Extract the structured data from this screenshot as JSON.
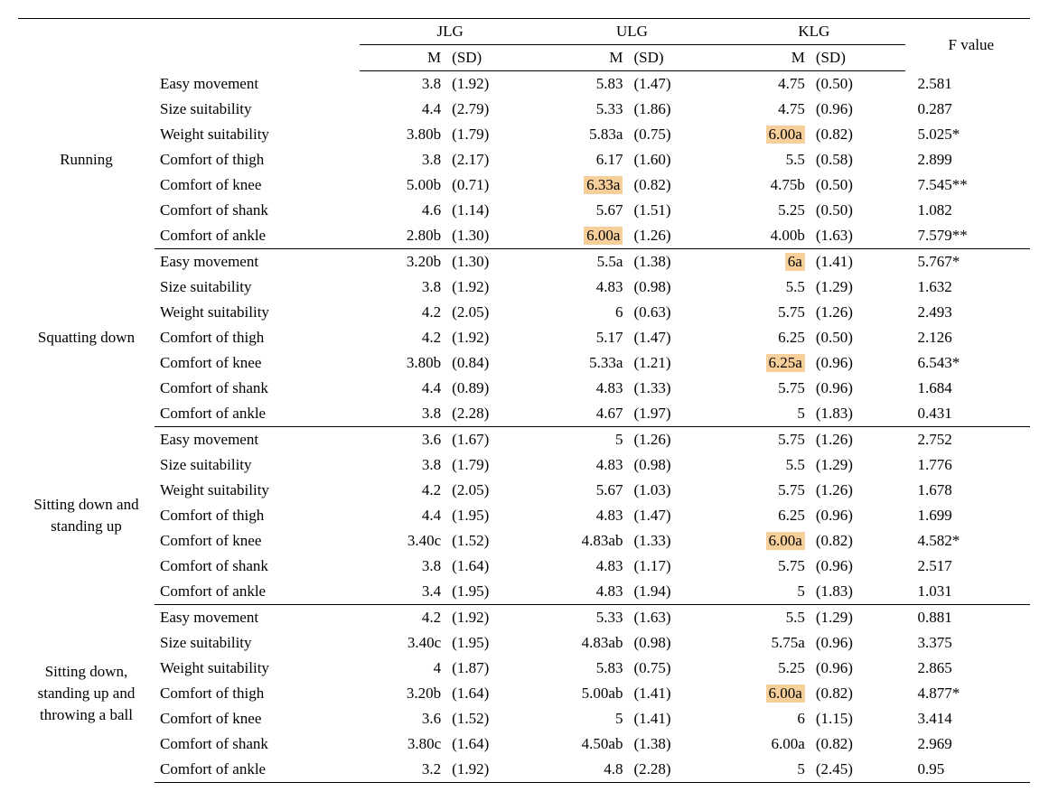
{
  "header": {
    "groups": [
      "JLG",
      "ULG",
      "KLG"
    ],
    "sub": {
      "m": "M",
      "sd": "(SD)"
    },
    "fvalue": "F value"
  },
  "sections": [
    {
      "label": "Running",
      "rows": [
        {
          "attr": "Easy movement",
          "jlg_m": "3.8",
          "jlg_sd": "(1.92)",
          "ulg_m": "5.83",
          "ulg_sd": "(1.47)",
          "klg_m": "4.75",
          "klg_sd": "(0.50)",
          "f": "2.581"
        },
        {
          "attr": "Size suitability",
          "jlg_m": "4.4",
          "jlg_sd": "(2.79)",
          "ulg_m": "5.33",
          "ulg_sd": "(1.86)",
          "klg_m": "4.75",
          "klg_sd": "(0.96)",
          "f": "0.287"
        },
        {
          "attr": "Weight suitability",
          "jlg_m": "3.80b",
          "jlg_sd": "(1.79)",
          "ulg_m": "5.83a",
          "ulg_sd": "(0.75)",
          "klg_m": "6.00a",
          "klg_hl": true,
          "klg_sd": "(0.82)",
          "f": "5.025*"
        },
        {
          "attr": "Comfort of thigh",
          "jlg_m": "3.8",
          "jlg_sd": "(2.17)",
          "ulg_m": "6.17",
          "ulg_sd": "(1.60)",
          "klg_m": "5.5",
          "klg_sd": "(0.58)",
          "f": "2.899"
        },
        {
          "attr": "Comfort of knee",
          "jlg_m": "5.00b",
          "jlg_sd": "(0.71)",
          "ulg_m": "6.33a",
          "ulg_hl": true,
          "ulg_sd": "(0.82)",
          "klg_m": "4.75b",
          "klg_sd": "(0.50)",
          "f": "7.545**"
        },
        {
          "attr": "Comfort of shank",
          "jlg_m": "4.6",
          "jlg_sd": "(1.14)",
          "ulg_m": "5.67",
          "ulg_sd": "(1.51)",
          "klg_m": "5.25",
          "klg_sd": "(0.50)",
          "f": "1.082"
        },
        {
          "attr": "Comfort of ankle",
          "jlg_m": "2.80b",
          "jlg_sd": "(1.30)",
          "ulg_m": "6.00a",
          "ulg_hl": true,
          "ulg_sd": "(1.26)",
          "klg_m": "4.00b",
          "klg_sd": "(1.63)",
          "f": "7.579**"
        }
      ]
    },
    {
      "label": "Squatting down",
      "rows": [
        {
          "attr": "Easy movement",
          "jlg_m": "3.20b",
          "jlg_sd": "(1.30)",
          "ulg_m": "5.5a",
          "ulg_sd": "(1.38)",
          "klg_m": "6a",
          "klg_hl": true,
          "klg_sd": "(1.41)",
          "f": "5.767*"
        },
        {
          "attr": "Size suitability",
          "jlg_m": "3.8",
          "jlg_sd": "(1.92)",
          "ulg_m": "4.83",
          "ulg_sd": "(0.98)",
          "klg_m": "5.5",
          "klg_sd": "(1.29)",
          "f": "1.632"
        },
        {
          "attr": "Weight suitability",
          "jlg_m": "4.2",
          "jlg_sd": "(2.05)",
          "ulg_m": "6",
          "ulg_sd": "(0.63)",
          "klg_m": "5.75",
          "klg_sd": "(1.26)",
          "f": "2.493"
        },
        {
          "attr": "Comfort of thigh",
          "jlg_m": "4.2",
          "jlg_sd": "(1.92)",
          "ulg_m": "5.17",
          "ulg_sd": "(1.47)",
          "klg_m": "6.25",
          "klg_sd": "(0.50)",
          "f": "2.126"
        },
        {
          "attr": "Comfort of knee",
          "jlg_m": "3.80b",
          "jlg_sd": "(0.84)",
          "ulg_m": "5.33a",
          "ulg_sd": "(1.21)",
          "klg_m": "6.25a",
          "klg_hl": true,
          "klg_sd": "(0.96)",
          "f": "6.543*"
        },
        {
          "attr": "Comfort of shank",
          "jlg_m": "4.4",
          "jlg_sd": "(0.89)",
          "ulg_m": "4.83",
          "ulg_sd": "(1.33)",
          "klg_m": "5.75",
          "klg_sd": "(0.96)",
          "f": "1.684"
        },
        {
          "attr": "Comfort of ankle",
          "jlg_m": "3.8",
          "jlg_sd": "(2.28)",
          "ulg_m": "4.67",
          "ulg_sd": "(1.97)",
          "klg_m": "5",
          "klg_sd": "(1.83)",
          "f": "0.431"
        }
      ]
    },
    {
      "label": "Sitting down and standing up",
      "rows": [
        {
          "attr": "Easy movement",
          "jlg_m": "3.6",
          "jlg_sd": "(1.67)",
          "ulg_m": "5",
          "ulg_sd": "(1.26)",
          "klg_m": "5.75",
          "klg_sd": "(1.26)",
          "f": "2.752"
        },
        {
          "attr": "Size suitability",
          "jlg_m": "3.8",
          "jlg_sd": "(1.79)",
          "ulg_m": "4.83",
          "ulg_sd": "(0.98)",
          "klg_m": "5.5",
          "klg_sd": "(1.29)",
          "f": "1.776"
        },
        {
          "attr": "Weight suitability",
          "jlg_m": "4.2",
          "jlg_sd": "(2.05)",
          "ulg_m": "5.67",
          "ulg_sd": "(1.03)",
          "klg_m": "5.75",
          "klg_sd": "(1.26)",
          "f": "1.678"
        },
        {
          "attr": "Comfort of thigh",
          "jlg_m": "4.4",
          "jlg_sd": "(1.95)",
          "ulg_m": "4.83",
          "ulg_sd": "(1.47)",
          "klg_m": "6.25",
          "klg_sd": "(0.96)",
          "f": "1.699"
        },
        {
          "attr": "Comfort of knee",
          "jlg_m": "3.40c",
          "jlg_sd": "(1.52)",
          "ulg_m": "4.83ab",
          "ulg_sd": "(1.33)",
          "klg_m": "6.00a",
          "klg_hl": true,
          "klg_sd": "(0.82)",
          "f": "4.582*"
        },
        {
          "attr": "Comfort of shank",
          "jlg_m": "3.8",
          "jlg_sd": "(1.64)",
          "ulg_m": "4.83",
          "ulg_sd": "(1.17)",
          "klg_m": "5.75",
          "klg_sd": "(0.96)",
          "f": "2.517"
        },
        {
          "attr": "Comfort of ankle",
          "jlg_m": "3.4",
          "jlg_sd": "(1.95)",
          "ulg_m": "4.83",
          "ulg_sd": "(1.94)",
          "klg_m": "5",
          "klg_sd": "(1.83)",
          "f": "1.031"
        }
      ]
    },
    {
      "label": "Sitting down, standing up and throwing a ball",
      "rows": [
        {
          "attr": "Easy movement",
          "jlg_m": "4.2",
          "jlg_sd": "(1.92)",
          "ulg_m": "5.33",
          "ulg_sd": "(1.63)",
          "klg_m": "5.5",
          "klg_sd": "(1.29)",
          "f": "0.881"
        },
        {
          "attr": "Size suitability",
          "jlg_m": "3.40c",
          "jlg_sd": "(1.95)",
          "ulg_m": "4.83ab",
          "ulg_sd": "(0.98)",
          "klg_m": "5.75a",
          "klg_sd": "(0.96)",
          "f": "3.375"
        },
        {
          "attr": "Weight suitability",
          "jlg_m": "4",
          "jlg_sd": "(1.87)",
          "ulg_m": "5.83",
          "ulg_sd": "(0.75)",
          "klg_m": "5.25",
          "klg_sd": "(0.96)",
          "f": "2.865"
        },
        {
          "attr": "Comfort of thigh",
          "jlg_m": "3.20b",
          "jlg_sd": "(1.64)",
          "ulg_m": "5.00ab",
          "ulg_sd": "(1.41)",
          "klg_m": "6.00a",
          "klg_hl": true,
          "klg_sd": "(0.82)",
          "f": "4.877*"
        },
        {
          "attr": "Comfort of knee",
          "jlg_m": "3.6",
          "jlg_sd": "(1.52)",
          "ulg_m": "5",
          "ulg_sd": "(1.41)",
          "klg_m": "6",
          "klg_sd": "(1.15)",
          "f": "3.414"
        },
        {
          "attr": "Comfort of shank",
          "jlg_m": "3.80c",
          "jlg_sd": "(1.64)",
          "ulg_m": "4.50ab",
          "ulg_sd": "(1.38)",
          "klg_m": "6.00a",
          "klg_sd": "(0.82)",
          "f": "2.969"
        },
        {
          "attr": "Comfort of ankle",
          "jlg_m": "3.2",
          "jlg_sd": "(1.92)",
          "ulg_m": "4.8",
          "ulg_sd": "(2.28)",
          "klg_m": "5",
          "klg_sd": "(2.45)",
          "f": "0.95"
        }
      ]
    }
  ]
}
